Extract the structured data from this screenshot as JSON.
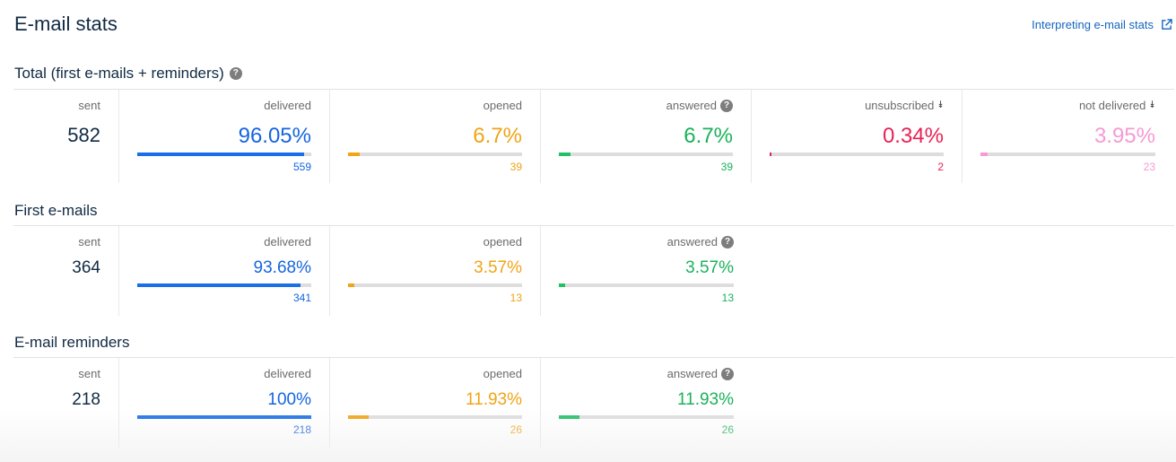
{
  "header": {
    "title": "E-mail stats",
    "help_link": "Interpreting e-mail stats",
    "help_icon": "external-link-icon"
  },
  "sections": [
    {
      "title": "Total (first e-mails + reminders)",
      "has_help": true,
      "sent_label": "sent",
      "sent": "582",
      "metrics": [
        {
          "label": "delivered",
          "pct": "96.05%",
          "count": "559",
          "fraction": 0.9605,
          "color": "#1a6ee6"
        },
        {
          "label": "opened",
          "pct": "6.7%",
          "count": "39",
          "fraction": 0.067,
          "color": "#f0a416"
        },
        {
          "label": "answered",
          "pct": "6.7%",
          "count": "39",
          "fraction": 0.067,
          "color": "#21c064"
        },
        {
          "label": "unsubscribed",
          "pct": "0.34%",
          "count": "2",
          "fraction": 0.0034,
          "color": "#e82255"
        },
        {
          "label": "not delivered",
          "pct": "3.95%",
          "count": "23",
          "fraction": 0.0395,
          "color": "#f59ad4"
        }
      ]
    },
    {
      "title": "First e-mails",
      "sent_label": "sent",
      "sent": "364",
      "metrics": [
        {
          "label": "delivered",
          "pct": "93.68%",
          "count": "341",
          "fraction": 0.9368,
          "color": "#1a6ee6"
        },
        {
          "label": "opened",
          "pct": "3.57%",
          "count": "13",
          "fraction": 0.0357,
          "color": "#f0a416"
        },
        {
          "label": "answered",
          "pct": "3.57%",
          "count": "13",
          "fraction": 0.0357,
          "color": "#21c064"
        }
      ]
    },
    {
      "title": "E-mail reminders",
      "sent_label": "sent",
      "sent": "218",
      "metrics": [
        {
          "label": "delivered",
          "pct": "100%",
          "count": "218",
          "fraction": 1.0,
          "color": "#1a6ee6"
        },
        {
          "label": "opened",
          "pct": "11.93%",
          "count": "26",
          "fraction": 0.1193,
          "color": "#f0a416"
        },
        {
          "label": "answered",
          "pct": "11.93%",
          "count": "26",
          "fraction": 0.1193,
          "color": "#21c064"
        }
      ]
    }
  ]
}
